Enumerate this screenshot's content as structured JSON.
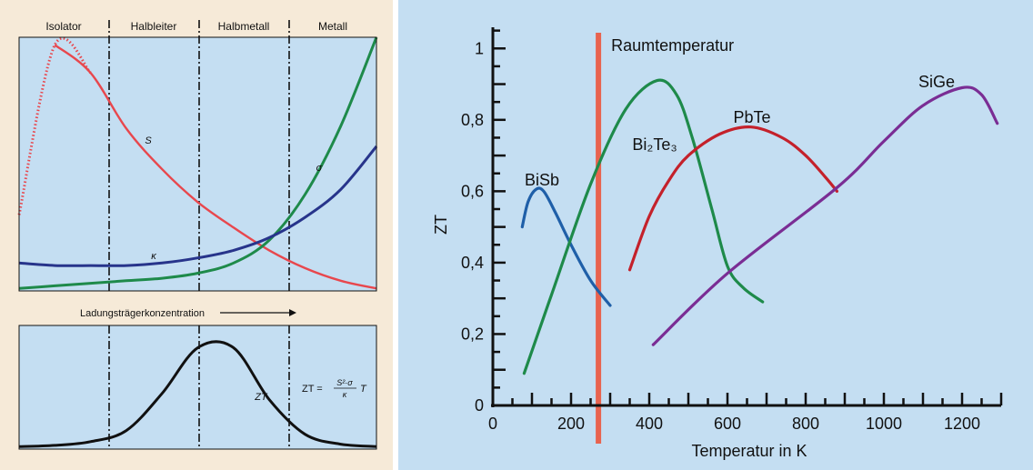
{
  "chart_data": [
    {
      "type": "line",
      "panel": "upper-left",
      "regimes": [
        "Isolator",
        "Halbleiter",
        "Halbmetall",
        "Metall"
      ],
      "x": [
        0,
        0.1,
        0.2,
        0.3,
        0.4,
        0.5,
        0.6,
        0.7,
        0.8,
        0.9,
        1.0
      ],
      "series": [
        {
          "name": "S",
          "values": [
            0.3,
            0.97,
            0.86,
            0.64,
            0.48,
            0.35,
            0.25,
            0.16,
            0.09,
            0.04,
            0.01
          ],
          "color": "#e8474d"
        },
        {
          "name": "σ",
          "values": [
            0.01,
            0.02,
            0.03,
            0.04,
            0.05,
            0.07,
            0.11,
            0.2,
            0.38,
            0.65,
            1.0
          ],
          "color": "#1e8a4a"
        },
        {
          "name": "κ",
          "values": [
            0.11,
            0.1,
            0.1,
            0.1,
            0.11,
            0.13,
            0.16,
            0.21,
            0.29,
            0.4,
            0.57
          ],
          "color": "#27348b"
        }
      ],
      "annotation": "Ladungsträgerkonzentration"
    },
    {
      "type": "line",
      "panel": "lower-left",
      "x": [
        0,
        0.1,
        0.2,
        0.3,
        0.4,
        0.5,
        0.6,
        0.7,
        0.8,
        0.9,
        1.0
      ],
      "series": [
        {
          "name": "ZT",
          "values": [
            0.02,
            0.03,
            0.06,
            0.15,
            0.45,
            0.82,
            0.82,
            0.4,
            0.12,
            0.04,
            0.02
          ],
          "color": "#111111"
        }
      ],
      "formula": {
        "lhs": "ZT =",
        "numerator": "S²·σ",
        "denominator": "κ",
        "suffix": "T"
      }
    },
    {
      "type": "line",
      "panel": "right",
      "xlabel": "Temperatur in K",
      "ylabel": "ZT",
      "xlim": [
        0,
        1300
      ],
      "ylim": [
        0,
        1.1
      ],
      "xticks": [
        0,
        200,
        400,
        600,
        800,
        1000,
        1200
      ],
      "yticks": [
        0,
        0.2,
        0.4,
        0.6,
        0.8,
        1
      ],
      "ytick_labels": [
        "0",
        "0,2",
        "0,4",
        "0,6",
        "0,8",
        "1"
      ],
      "reference_line": {
        "x": 270,
        "label": "Raumtemperatur",
        "color": "#e8634f"
      },
      "series": [
        {
          "name": "BiSb",
          "color": "#1f5fa8",
          "points": [
            [
              75,
              0.5
            ],
            [
              90,
              0.57
            ],
            [
              110,
              0.605
            ],
            [
              130,
              0.6
            ],
            [
              160,
              0.54
            ],
            [
              200,
              0.45
            ],
            [
              250,
              0.35
            ],
            [
              300,
              0.28
            ]
          ]
        },
        {
          "name": "Bi₂Te₃",
          "color": "#1e8a4a",
          "points": [
            [
              80,
              0.09
            ],
            [
              150,
              0.31
            ],
            [
              250,
              0.62
            ],
            [
              340,
              0.83
            ],
            [
              420,
              0.91
            ],
            [
              470,
              0.87
            ],
            [
              510,
              0.75
            ],
            [
              560,
              0.55
            ],
            [
              600,
              0.39
            ],
            [
              640,
              0.33
            ],
            [
              690,
              0.29
            ]
          ]
        },
        {
          "name": "PbTe",
          "color": "#c4212b",
          "points": [
            [
              350,
              0.38
            ],
            [
              400,
              0.53
            ],
            [
              450,
              0.63
            ],
            [
              500,
              0.7
            ],
            [
              580,
              0.76
            ],
            [
              660,
              0.78
            ],
            [
              740,
              0.75
            ],
            [
              800,
              0.7
            ],
            [
              850,
              0.64
            ],
            [
              880,
              0.6
            ]
          ]
        },
        {
          "name": "SiGe",
          "color": "#7a2d94",
          "points": [
            [
              410,
              0.17
            ],
            [
              600,
              0.37
            ],
            [
              880,
              0.61
            ],
            [
              1000,
              0.74
            ],
            [
              1100,
              0.84
            ],
            [
              1200,
              0.89
            ],
            [
              1250,
              0.87
            ],
            [
              1290,
              0.79
            ]
          ]
        }
      ]
    }
  ]
}
